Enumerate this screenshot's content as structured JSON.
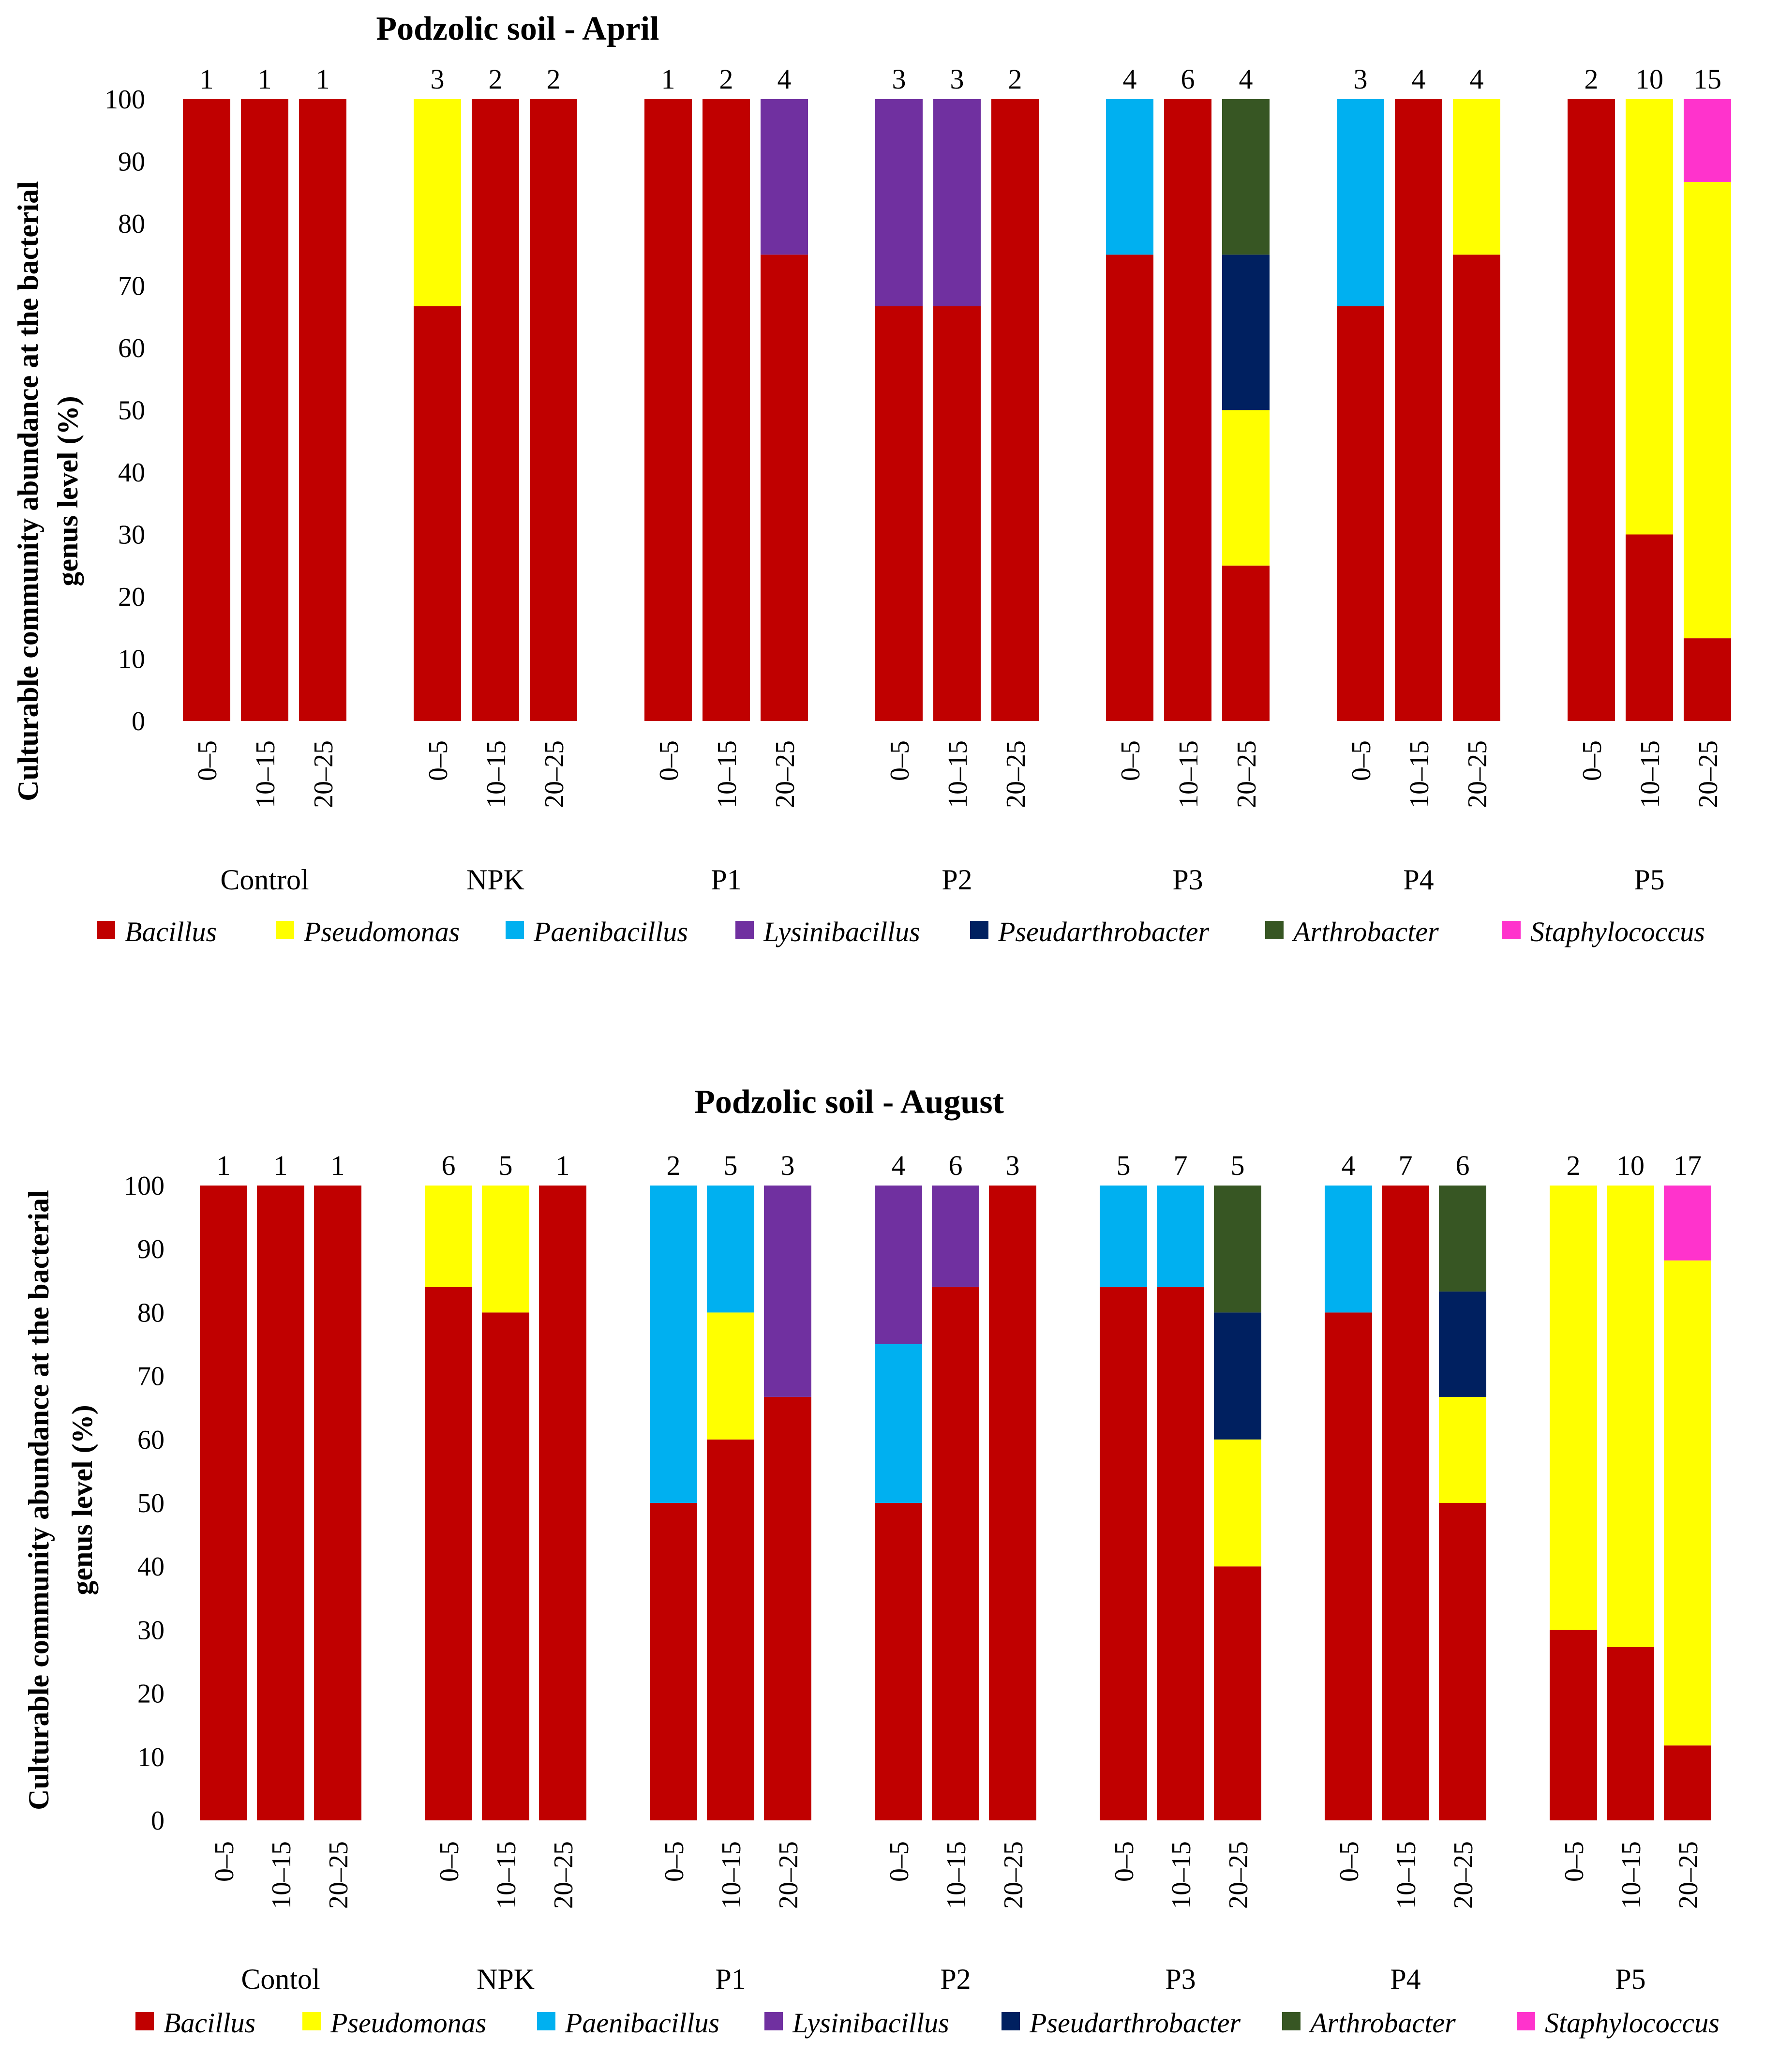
{
  "palette": {
    "Bacillus": "#C00000",
    "Pseudomonas": "#FFFF00",
    "Paenibacillus": "#00B0F0",
    "Lysinibacillus": "#7030A0",
    "Pseudarthrobacter": "#002060",
    "Arthrobacter": "#375623",
    "Staphylococcus": "#FF33CC"
  },
  "chart_data": [
    {
      "type": "bar",
      "stacked": true,
      "title": "Podzolic soil - April",
      "ylabel": "Culturable community abundance at the bacterial genus level (%)",
      "ylim": [
        0,
        100
      ],
      "yticks": [
        "0",
        "10",
        "20",
        "30",
        "40",
        "50",
        "60",
        "70",
        "80",
        "90",
        "100"
      ],
      "legend": [
        "Bacillus",
        "Pseudomonas",
        "Paenibacillus",
        "Lysinibacillus",
        "Pseudarthrobacter",
        "Arthrobacter",
        "Staphylococcus"
      ],
      "groups": [
        {
          "name": "Control",
          "bars": [
            {
              "depth": "0–5",
              "count": "1",
              "segments": [
                {
                  "genus": "Bacillus",
                  "value": 100
                }
              ]
            },
            {
              "depth": "10–15",
              "count": "1",
              "segments": [
                {
                  "genus": "Bacillus",
                  "value": 100
                }
              ]
            },
            {
              "depth": "20–25",
              "count": "1",
              "segments": [
                {
                  "genus": "Bacillus",
                  "value": 100
                }
              ]
            }
          ]
        },
        {
          "name": "NPK",
          "bars": [
            {
              "depth": "0–5",
              "count": "3",
              "segments": [
                {
                  "genus": "Bacillus",
                  "value": 66.7
                },
                {
                  "genus": "Pseudomonas",
                  "value": 33.3
                }
              ]
            },
            {
              "depth": "10–15",
              "count": "2",
              "segments": [
                {
                  "genus": "Bacillus",
                  "value": 100
                }
              ]
            },
            {
              "depth": "20–25",
              "count": "2",
              "segments": [
                {
                  "genus": "Bacillus",
                  "value": 100
                }
              ]
            }
          ]
        },
        {
          "name": "P1",
          "bars": [
            {
              "depth": "0–5",
              "count": "1",
              "segments": [
                {
                  "genus": "Bacillus",
                  "value": 100
                }
              ]
            },
            {
              "depth": "10–15",
              "count": "2",
              "segments": [
                {
                  "genus": "Bacillus",
                  "value": 100
                }
              ]
            },
            {
              "depth": "20–25",
              "count": "4",
              "segments": [
                {
                  "genus": "Bacillus",
                  "value": 75
                },
                {
                  "genus": "Lysinibacillus",
                  "value": 25
                }
              ]
            }
          ]
        },
        {
          "name": "P2",
          "bars": [
            {
              "depth": "0–5",
              "count": "3",
              "segments": [
                {
                  "genus": "Bacillus",
                  "value": 66.7
                },
                {
                  "genus": "Lysinibacillus",
                  "value": 33.3
                }
              ]
            },
            {
              "depth": "10–15",
              "count": "3",
              "segments": [
                {
                  "genus": "Bacillus",
                  "value": 66.7
                },
                {
                  "genus": "Lysinibacillus",
                  "value": 33.3
                }
              ]
            },
            {
              "depth": "20–25",
              "count": "2",
              "segments": [
                {
                  "genus": "Bacillus",
                  "value": 100
                }
              ]
            }
          ]
        },
        {
          "name": "P3",
          "bars": [
            {
              "depth": "0–5",
              "count": "4",
              "segments": [
                {
                  "genus": "Bacillus",
                  "value": 75
                },
                {
                  "genus": "Paenibacillus",
                  "value": 25
                }
              ]
            },
            {
              "depth": "10–15",
              "count": "6",
              "segments": [
                {
                  "genus": "Bacillus",
                  "value": 100
                }
              ]
            },
            {
              "depth": "20–25",
              "count": "4",
              "segments": [
                {
                  "genus": "Bacillus",
                  "value": 25
                },
                {
                  "genus": "Pseudomonas",
                  "value": 25
                },
                {
                  "genus": "Pseudarthrobacter",
                  "value": 25
                },
                {
                  "genus": "Arthrobacter",
                  "value": 25
                }
              ]
            }
          ]
        },
        {
          "name": "P4",
          "bars": [
            {
              "depth": "0–5",
              "count": "3",
              "segments": [
                {
                  "genus": "Bacillus",
                  "value": 66.7
                },
                {
                  "genus": "Paenibacillus",
                  "value": 33.3
                }
              ]
            },
            {
              "depth": "10–15",
              "count": "4",
              "segments": [
                {
                  "genus": "Bacillus",
                  "value": 100
                }
              ]
            },
            {
              "depth": "20–25",
              "count": "4",
              "segments": [
                {
                  "genus": "Bacillus",
                  "value": 75
                },
                {
                  "genus": "Pseudomonas",
                  "value": 25
                }
              ]
            }
          ]
        },
        {
          "name": "P5",
          "bars": [
            {
              "depth": "0–5",
              "count": "2",
              "segments": [
                {
                  "genus": "Bacillus",
                  "value": 100
                }
              ]
            },
            {
              "depth": "10–15",
              "count": "10",
              "segments": [
                {
                  "genus": "Bacillus",
                  "value": 30
                },
                {
                  "genus": "Pseudomonas",
                  "value": 70
                }
              ]
            },
            {
              "depth": "20–25",
              "count": "15",
              "segments": [
                {
                  "genus": "Bacillus",
                  "value": 13.3
                },
                {
                  "genus": "Pseudomonas",
                  "value": 73.4
                },
                {
                  "genus": "Staphylococcus",
                  "value": 13.3
                }
              ]
            }
          ]
        }
      ]
    },
    {
      "type": "bar",
      "stacked": true,
      "title": "Podzolic soil -  August",
      "ylabel": "Culturable community abundance at the bacterial genus level (%)",
      "ylim": [
        0,
        100
      ],
      "yticks": [
        "0",
        "10",
        "20",
        "30",
        "40",
        "50",
        "60",
        "70",
        "80",
        "90",
        "100"
      ],
      "legend": [
        "Bacillus",
        "Pseudomonas",
        "Paenibacillus",
        "Lysinibacillus",
        "Pseudarthrobacter",
        "Arthrobacter",
        "Staphylococcus"
      ],
      "groups": [
        {
          "name": "Contol",
          "bars": [
            {
              "depth": "0–5",
              "count": "1",
              "segments": [
                {
                  "genus": "Bacillus",
                  "value": 100
                }
              ]
            },
            {
              "depth": "10–15",
              "count": "1",
              "segments": [
                {
                  "genus": "Bacillus",
                  "value": 100
                }
              ]
            },
            {
              "depth": "20–25",
              "count": "1",
              "segments": [
                {
                  "genus": "Bacillus",
                  "value": 100
                }
              ]
            }
          ]
        },
        {
          "name": "NPK",
          "bars": [
            {
              "depth": "0–5",
              "count": "6",
              "segments": [
                {
                  "genus": "Bacillus",
                  "value": 84
                },
                {
                  "genus": "Pseudomonas",
                  "value": 16
                }
              ]
            },
            {
              "depth": "10–15",
              "count": "5",
              "segments": [
                {
                  "genus": "Bacillus",
                  "value": 80
                },
                {
                  "genus": "Pseudomonas",
                  "value": 20
                }
              ]
            },
            {
              "depth": "20–25",
              "count": "1",
              "segments": [
                {
                  "genus": "Bacillus",
                  "value": 100
                }
              ]
            }
          ]
        },
        {
          "name": "P1",
          "bars": [
            {
              "depth": "0–5",
              "count": "2",
              "segments": [
                {
                  "genus": "Bacillus",
                  "value": 50
                },
                {
                  "genus": "Paenibacillus",
                  "value": 50
                }
              ]
            },
            {
              "depth": "10–15",
              "count": "5",
              "segments": [
                {
                  "genus": "Bacillus",
                  "value": 60
                },
                {
                  "genus": "Pseudomonas",
                  "value": 20
                },
                {
                  "genus": "Paenibacillus",
                  "value": 20
                }
              ]
            },
            {
              "depth": "20–25",
              "count": "3",
              "segments": [
                {
                  "genus": "Bacillus",
                  "value": 66.7
                },
                {
                  "genus": "Lysinibacillus",
                  "value": 33.3
                }
              ]
            }
          ]
        },
        {
          "name": "P2",
          "bars": [
            {
              "depth": "0–5",
              "count": "4",
              "segments": [
                {
                  "genus": "Bacillus",
                  "value": 50
                },
                {
                  "genus": "Paenibacillus",
                  "value": 25
                },
                {
                  "genus": "Lysinibacillus",
                  "value": 25
                }
              ]
            },
            {
              "depth": "10–15",
              "count": "6",
              "segments": [
                {
                  "genus": "Bacillus",
                  "value": 84
                },
                {
                  "genus": "Lysinibacillus",
                  "value": 16
                }
              ]
            },
            {
              "depth": "20–25",
              "count": "3",
              "segments": [
                {
                  "genus": "Bacillus",
                  "value": 100
                }
              ]
            }
          ]
        },
        {
          "name": "P3",
          "bars": [
            {
              "depth": "0–5",
              "count": "5",
              "segments": [
                {
                  "genus": "Bacillus",
                  "value": 84
                },
                {
                  "genus": "Paenibacillus",
                  "value": 16
                }
              ]
            },
            {
              "depth": "10–15",
              "count": "7",
              "segments": [
                {
                  "genus": "Bacillus",
                  "value": 84
                },
                {
                  "genus": "Paenibacillus",
                  "value": 16
                }
              ]
            },
            {
              "depth": "20–25",
              "count": "5",
              "segments": [
                {
                  "genus": "Bacillus",
                  "value": 40
                },
                {
                  "genus": "Pseudomonas",
                  "value": 20
                },
                {
                  "genus": "Pseudarthrobacter",
                  "value": 20
                },
                {
                  "genus": "Arthrobacter",
                  "value": 20
                }
              ]
            }
          ]
        },
        {
          "name": "P4",
          "bars": [
            {
              "depth": "0–5",
              "count": "4",
              "segments": [
                {
                  "genus": "Bacillus",
                  "value": 80
                },
                {
                  "genus": "Paenibacillus",
                  "value": 20
                }
              ]
            },
            {
              "depth": "10–15",
              "count": "7",
              "segments": [
                {
                  "genus": "Bacillus",
                  "value": 100
                }
              ]
            },
            {
              "depth": "20–25",
              "count": "6",
              "segments": [
                {
                  "genus": "Bacillus",
                  "value": 50
                },
                {
                  "genus": "Pseudomonas",
                  "value": 16.7
                },
                {
                  "genus": "Pseudarthrobacter",
                  "value": 16.6
                },
                {
                  "genus": "Arthrobacter",
                  "value": 16.7
                }
              ]
            }
          ]
        },
        {
          "name": "P5",
          "bars": [
            {
              "depth": "0–5",
              "count": "2",
              "segments": [
                {
                  "genus": "Bacillus",
                  "value": 30
                },
                {
                  "genus": "Pseudomonas",
                  "value": 70
                }
              ]
            },
            {
              "depth": "10–15",
              "count": "10",
              "segments": [
                {
                  "genus": "Bacillus",
                  "value": 27.3
                },
                {
                  "genus": "Pseudomonas",
                  "value": 72.7
                }
              ]
            },
            {
              "depth": "20–25",
              "count": "17",
              "segments": [
                {
                  "genus": "Bacillus",
                  "value": 11.8
                },
                {
                  "genus": "Pseudomonas",
                  "value": 76.4
                },
                {
                  "genus": "Staphylococcus",
                  "value": 11.8
                }
              ]
            }
          ]
        }
      ]
    }
  ]
}
